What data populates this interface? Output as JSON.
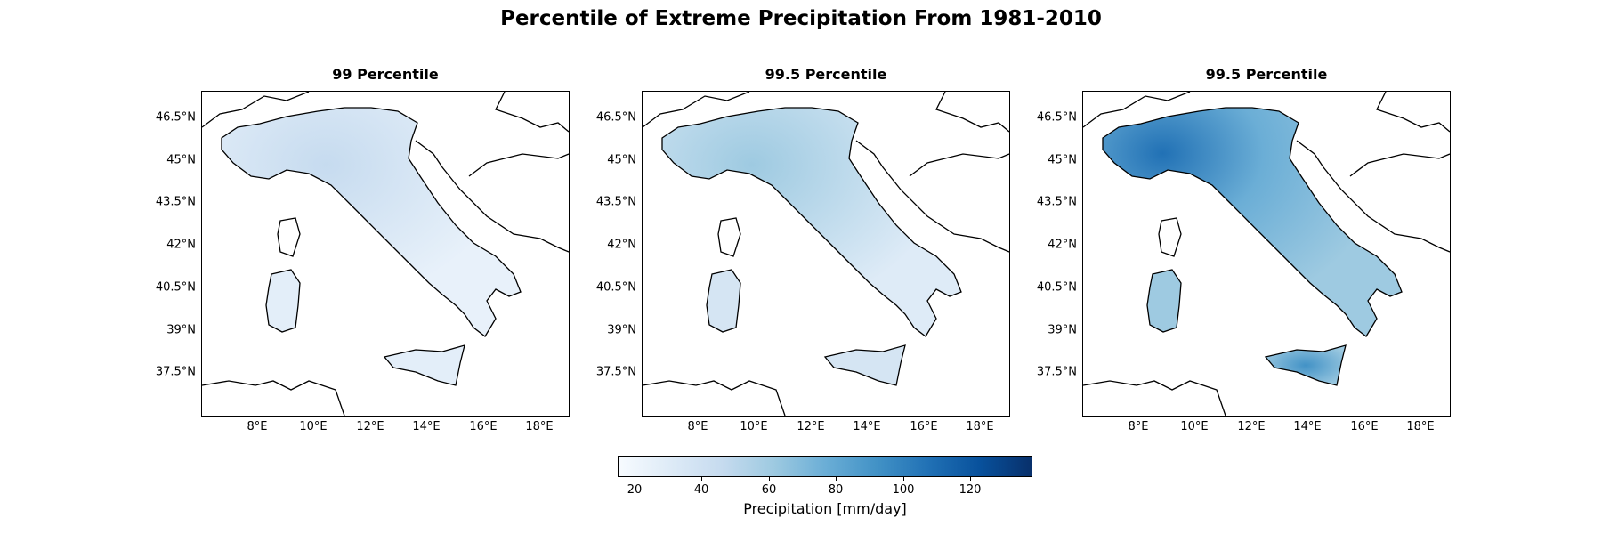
{
  "figure": {
    "title": "Percentile of Extreme Precipitation From 1981-2010"
  },
  "panels": [
    {
      "title": "99 Percentile"
    },
    {
      "title": "99.5 Percentile"
    },
    {
      "title": "99.5 Percentile"
    }
  ],
  "axes": {
    "y_ticks": [
      "46.5°N",
      "45°N",
      "43.5°N",
      "42°N",
      "40.5°N",
      "39°N",
      "37.5°N"
    ],
    "x_ticks": [
      "8°E",
      "10°E",
      "12°E",
      "14°E",
      "16°E",
      "18°E"
    ]
  },
  "colorbar": {
    "label": "Precipitation [mm/day]",
    "ticks": [
      "20",
      "40",
      "60",
      "80",
      "100",
      "120"
    ],
    "range": [
      15,
      138
    ],
    "colormap": "Blues",
    "colors": [
      "#f7fbff",
      "#deebf7",
      "#c6dbef",
      "#9ecae1",
      "#6baed6",
      "#4292c6",
      "#2171b5",
      "#08519c",
      "#08306b"
    ]
  }
}
